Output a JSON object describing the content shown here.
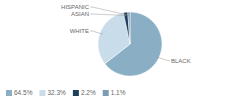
{
  "chart_data": {
    "type": "pie",
    "categories": [
      "BLACK",
      "WHITE",
      "ASIAN",
      "HISPANIC"
    ],
    "values": [
      64.5,
      32.3,
      2.2,
      1.1
    ],
    "value_labels": [
      "64.5%",
      "32.3%",
      "2.2%",
      "1.1%"
    ],
    "colors": [
      "#8aafc4",
      "#c8dde9",
      "#1e3f5c",
      "#7a9db5"
    ],
    "legend": "bottom-left"
  }
}
